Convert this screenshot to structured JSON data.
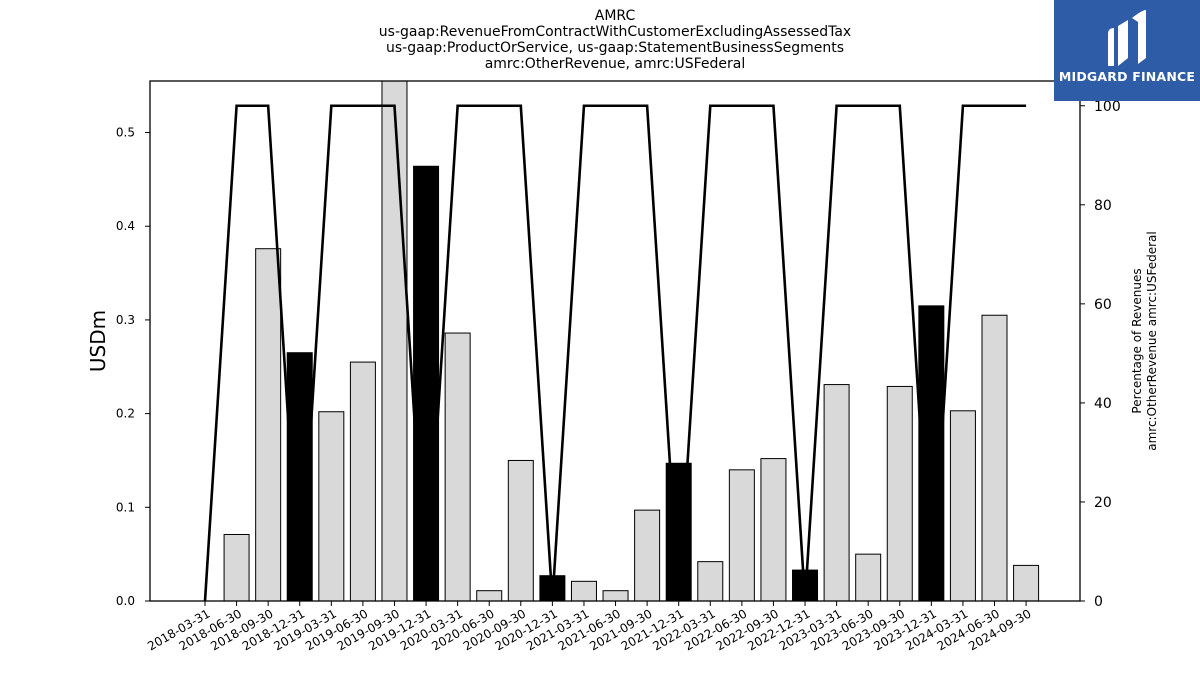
{
  "titles": [
    "AMRC",
    "us-gaap:RevenueFromContractWithCustomerExcludingAssessedTax",
    "us-gaap:ProductOrService, us-gaap:StatementBusinessSegments",
    "amrc:OtherRevenue, amrc:USFederal"
  ],
  "logo": {
    "text": "MIDGARD FINANCE",
    "icon": "midgard-logo-icon",
    "color": "#2e5ca6"
  },
  "chart_data": {
    "type": "bar",
    "categories": [
      "2018-03-31",
      "2018-06-30",
      "2018-09-30",
      "2018-12-31",
      "2019-03-31",
      "2019-06-30",
      "2019-09-30",
      "2019-12-31",
      "2020-03-31",
      "2020-06-30",
      "2020-09-30",
      "2020-12-31",
      "2021-03-31",
      "2021-06-30",
      "2021-09-30",
      "2021-12-31",
      "2022-03-31",
      "2022-06-30",
      "2022-09-30",
      "2022-12-31",
      "2023-03-31",
      "2023-06-30",
      "2023-09-30",
      "2023-12-31",
      "2024-03-31",
      "2024-06-30",
      "2024-09-30"
    ],
    "values": [
      0,
      0.071,
      0.376,
      0.265,
      0.202,
      0.255,
      0.556,
      0.464,
      0.286,
      0.011,
      0.15,
      0.027,
      0.021,
      0.011,
      0.097,
      0.147,
      0.042,
      0.14,
      0.152,
      0.033,
      0.231,
      0.05,
      0.229,
      0.315,
      0.203,
      0.305,
      0.038
    ],
    "highlighted": [
      false,
      false,
      false,
      true,
      false,
      false,
      false,
      true,
      false,
      false,
      false,
      true,
      false,
      false,
      false,
      true,
      false,
      false,
      false,
      true,
      false,
      false,
      false,
      true,
      false,
      false,
      false
    ],
    "percentage": [
      0,
      100,
      100,
      0,
      100,
      100,
      100,
      0,
      100,
      100,
      100,
      0,
      100,
      100,
      100,
      0,
      100,
      100,
      100,
      0,
      100,
      100,
      100,
      0,
      100,
      100,
      100
    ],
    "ylabel": "USDm",
    "y2label": [
      "Percentage of Revenues",
      "amrc:OtherRevenue amrc:USFederal"
    ],
    "ylim": [
      0,
      0.555
    ],
    "y2lim": [
      0,
      105
    ],
    "yticks": [
      "0.0",
      "0.1",
      "0.2",
      "0.3",
      "0.4",
      "0.5"
    ],
    "y2ticks": [
      "0",
      "20",
      "40",
      "60",
      "80",
      "100"
    ],
    "colors": {
      "bar": "#d9d9d9",
      "bar_highlight": "#000000",
      "line": "#000000"
    },
    "grid": false,
    "legend": "none"
  }
}
